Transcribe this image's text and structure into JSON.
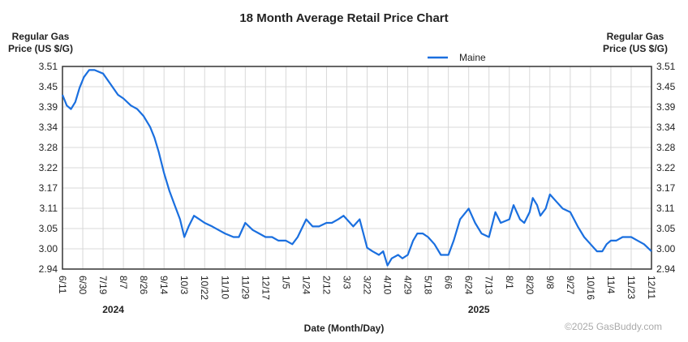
{
  "chart_data": {
    "type": "line",
    "title": "18 Month Average Retail Price Chart",
    "ylabel": "Regular Gas Price (US $/G)",
    "ylabel_line1": "Regular Gas",
    "ylabel_line2": "Price (US $/G)",
    "xlabel": "Date (Month/Day)",
    "yticks": [
      "3.51",
      "3.45",
      "3.39",
      "3.34",
      "3.28",
      "3.22",
      "3.17",
      "3.11",
      "3.05",
      "3.00",
      "2.94"
    ],
    "ylim": [
      2.94,
      3.51
    ],
    "xticks": [
      "6/11",
      "6/30",
      "7/19",
      "8/7",
      "8/26",
      "9/14",
      "10/3",
      "10/22",
      "11/10",
      "11/29",
      "12/17",
      "1/5",
      "1/24",
      "2/12",
      "3/3",
      "3/22",
      "4/10",
      "4/29",
      "5/18",
      "6/6",
      "6/24",
      "7/13",
      "8/1",
      "8/20",
      "9/8",
      "9/27",
      "10/16",
      "11/4",
      "11/23",
      "12/11"
    ],
    "xtick_step_days": 19,
    "years": [
      {
        "label": "2024",
        "tick_index": 2.5
      },
      {
        "label": "2025",
        "tick_index": 20.5
      }
    ],
    "legend": {
      "position": "top-center"
    },
    "grid": true,
    "series": [
      {
        "name": "Maine",
        "color": "#1a6fdf",
        "x": [
          0,
          4,
          8,
          12,
          16,
          20,
          25,
          30,
          38,
          45,
          52,
          57,
          64,
          70,
          76,
          82,
          86,
          90,
          95,
          100,
          105,
          110,
          114,
          118,
          123,
          128,
          133,
          140,
          146,
          152,
          160,
          165,
          171,
          178,
          184,
          190,
          196,
          202,
          209,
          215,
          220,
          228,
          234,
          240,
          247,
          252,
          258,
          263,
          266,
          272,
          278,
          285,
          290,
          296,
          300,
          304,
          308,
          314,
          318,
          323,
          328,
          332,
          337,
          342,
          348,
          354,
          361,
          366,
          372,
          380,
          386,
          392,
          399,
          405,
          410,
          418,
          422,
          428,
          432,
          437,
          440,
          444,
          447,
          452,
          456,
          462,
          468,
          475,
          482,
          488,
          494,
          500,
          505,
          509,
          513,
          518,
          524,
          532,
          538,
          544,
          551
        ],
        "y": [
          3.43,
          3.4,
          3.39,
          3.41,
          3.45,
          3.48,
          3.5,
          3.5,
          3.49,
          3.46,
          3.43,
          3.42,
          3.4,
          3.39,
          3.37,
          3.34,
          3.31,
          3.27,
          3.21,
          3.16,
          3.12,
          3.08,
          3.03,
          3.06,
          3.09,
          3.08,
          3.07,
          3.06,
          3.05,
          3.04,
          3.03,
          3.03,
          3.07,
          3.05,
          3.04,
          3.03,
          3.03,
          3.02,
          3.02,
          3.01,
          3.03,
          3.08,
          3.06,
          3.06,
          3.07,
          3.07,
          3.08,
          3.09,
          3.08,
          3.06,
          3.08,
          3.0,
          2.99,
          2.98,
          2.99,
          2.95,
          2.97,
          2.98,
          2.97,
          2.98,
          3.02,
          3.04,
          3.04,
          3.03,
          3.01,
          2.98,
          2.98,
          3.02,
          3.08,
          3.11,
          3.07,
          3.04,
          3.03,
          3.1,
          3.07,
          3.08,
          3.12,
          3.08,
          3.07,
          3.1,
          3.14,
          3.12,
          3.09,
          3.11,
          3.15,
          3.13,
          3.11,
          3.1,
          3.06,
          3.03,
          3.01,
          2.99,
          2.99,
          3.01,
          3.02,
          3.02,
          3.03,
          3.03,
          3.02,
          3.01,
          2.99
        ]
      }
    ]
  },
  "copyright": "©2025 GasBuddy.com"
}
